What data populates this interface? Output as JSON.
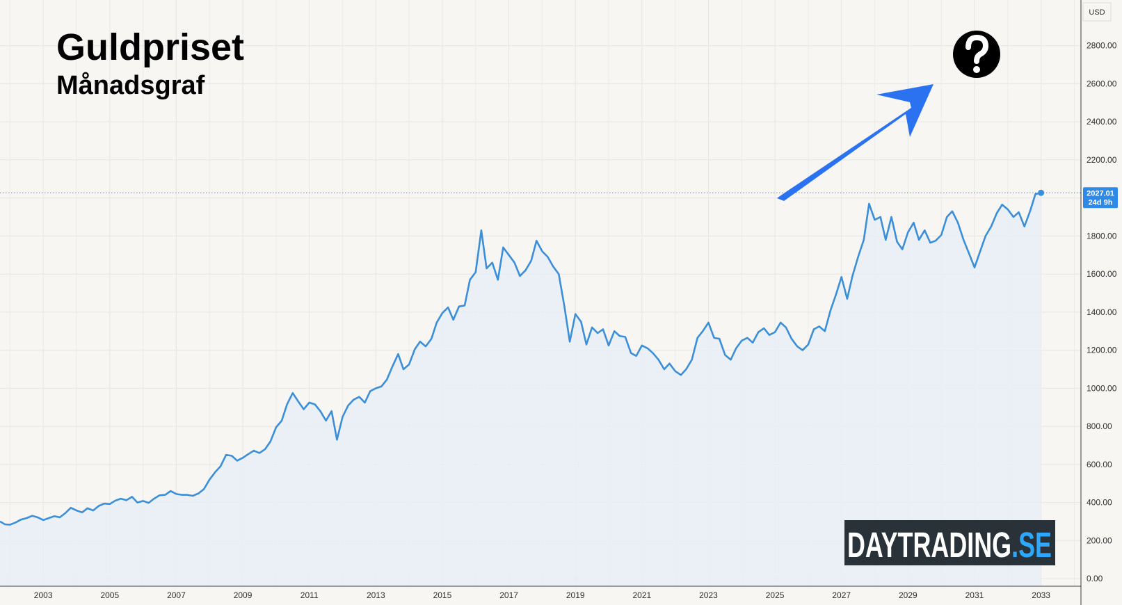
{
  "chart_data": {
    "type": "area",
    "title": "Guldpriset",
    "subtitle": "Månadsgraf",
    "currency": "USD",
    "x_range": [
      2001.7,
      2034.2
    ],
    "ylim": [
      -40,
      3040
    ],
    "x_ticks": [
      "2003",
      "2005",
      "2007",
      "2009",
      "2011",
      "2013",
      "2015",
      "2017",
      "2019",
      "2021",
      "2023",
      "2025",
      "2027",
      "2029",
      "2031",
      "2033"
    ],
    "y_ticks": [
      "0.00",
      "200.00",
      "400.00",
      "600.00",
      "800.00",
      "1000.00",
      "1200.00",
      "1400.00",
      "1600.00",
      "1800.00",
      "2200.00",
      "2400.00",
      "2600.00",
      "2800.00"
    ],
    "grid": true,
    "last_price": {
      "value": 2027.01,
      "label": "2027.01",
      "countdown": "24d 9h"
    },
    "series": [
      {
        "name": "",
        "color": "#3b8fd8",
        "points": [
          [
            2001.7,
            300
          ],
          [
            2001.85,
            285
          ],
          [
            2002.0,
            283
          ],
          [
            2002.17,
            295
          ],
          [
            2002.33,
            310
          ],
          [
            2002.5,
            318
          ],
          [
            2002.67,
            330
          ],
          [
            2002.83,
            322
          ],
          [
            2003.0,
            308
          ],
          [
            2003.17,
            318
          ],
          [
            2003.33,
            328
          ],
          [
            2003.5,
            322
          ],
          [
            2003.67,
            345
          ],
          [
            2003.83,
            372
          ],
          [
            2004.0,
            358
          ],
          [
            2004.17,
            348
          ],
          [
            2004.33,
            370
          ],
          [
            2004.5,
            358
          ],
          [
            2004.67,
            382
          ],
          [
            2004.83,
            394
          ],
          [
            2005.0,
            392
          ],
          [
            2005.17,
            410
          ],
          [
            2005.33,
            420
          ],
          [
            2005.5,
            412
          ],
          [
            2005.67,
            430
          ],
          [
            2005.83,
            400
          ],
          [
            2006.0,
            408
          ],
          [
            2006.17,
            398
          ],
          [
            2006.33,
            420
          ],
          [
            2006.5,
            438
          ],
          [
            2006.67,
            440
          ],
          [
            2006.83,
            460
          ],
          [
            2007.0,
            445
          ],
          [
            2007.17,
            440
          ],
          [
            2007.33,
            440
          ],
          [
            2007.5,
            435
          ],
          [
            2007.67,
            448
          ],
          [
            2007.83,
            470
          ],
          [
            2008.0,
            520
          ],
          [
            2008.17,
            560
          ],
          [
            2008.33,
            590
          ],
          [
            2008.5,
            650
          ],
          [
            2008.67,
            645
          ],
          [
            2008.83,
            620
          ],
          [
            2009.0,
            635
          ],
          [
            2009.17,
            655
          ],
          [
            2009.33,
            672
          ],
          [
            2009.5,
            660
          ],
          [
            2009.67,
            680
          ],
          [
            2009.83,
            720
          ],
          [
            2010.0,
            795
          ],
          [
            2010.17,
            830
          ],
          [
            2010.33,
            915
          ],
          [
            2010.5,
            975
          ],
          [
            2010.67,
            930
          ],
          [
            2010.83,
            890
          ],
          [
            2011.0,
            925
          ],
          [
            2011.17,
            915
          ],
          [
            2011.33,
            880
          ],
          [
            2011.5,
            830
          ],
          [
            2011.67,
            880
          ],
          [
            2011.83,
            730
          ],
          [
            2012.0,
            850
          ],
          [
            2012.17,
            910
          ],
          [
            2012.33,
            940
          ],
          [
            2012.5,
            955
          ],
          [
            2012.67,
            925
          ],
          [
            2012.83,
            985
          ],
          [
            2013.0,
            1000
          ],
          [
            2013.17,
            1010
          ],
          [
            2013.33,
            1045
          ],
          [
            2013.5,
            1115
          ],
          [
            2013.67,
            1180
          ],
          [
            2013.83,
            1100
          ],
          [
            2014.0,
            1125
          ],
          [
            2014.17,
            1205
          ],
          [
            2014.33,
            1245
          ],
          [
            2014.5,
            1220
          ],
          [
            2014.67,
            1260
          ],
          [
            2014.83,
            1345
          ],
          [
            2015.0,
            1395
          ],
          [
            2015.17,
            1425
          ],
          [
            2015.33,
            1360
          ],
          [
            2015.5,
            1430
          ],
          [
            2015.67,
            1435
          ],
          [
            2015.83,
            1570
          ],
          [
            2016.0,
            1610
          ],
          [
            2016.17,
            1830
          ],
          [
            2016.33,
            1630
          ],
          [
            2016.5,
            1660
          ],
          [
            2016.67,
            1570
          ],
          [
            2016.83,
            1740
          ],
          [
            2017.0,
            1700
          ],
          [
            2017.17,
            1660
          ],
          [
            2017.33,
            1590
          ],
          [
            2017.5,
            1620
          ],
          [
            2017.67,
            1670
          ],
          [
            2017.83,
            1775
          ],
          [
            2018.0,
            1720
          ],
          [
            2018.17,
            1690
          ],
          [
            2018.33,
            1640
          ],
          [
            2018.5,
            1600
          ],
          [
            2018.67,
            1430
          ],
          [
            2018.83,
            1245
          ],
          [
            2019.0,
            1390
          ],
          [
            2019.17,
            1350
          ],
          [
            2019.33,
            1230
          ],
          [
            2019.5,
            1320
          ],
          [
            2019.67,
            1290
          ],
          [
            2019.83,
            1310
          ],
          [
            2020.0,
            1225
          ],
          [
            2020.17,
            1300
          ],
          [
            2020.33,
            1275
          ],
          [
            2020.5,
            1270
          ],
          [
            2020.67,
            1185
          ],
          [
            2020.83,
            1170
          ],
          [
            2021.0,
            1225
          ],
          [
            2021.17,
            1210
          ],
          [
            2021.33,
            1185
          ],
          [
            2021.5,
            1150
          ],
          [
            2021.67,
            1100
          ],
          [
            2021.83,
            1130
          ],
          [
            2022.0,
            1090
          ],
          [
            2022.17,
            1070
          ],
          [
            2022.33,
            1100
          ],
          [
            2022.5,
            1150
          ],
          [
            2022.67,
            1265
          ],
          [
            2022.83,
            1300
          ],
          [
            2023.0,
            1345
          ],
          [
            2023.17,
            1265
          ],
          [
            2023.33,
            1260
          ],
          [
            2023.5,
            1175
          ],
          [
            2023.67,
            1150
          ],
          [
            2023.83,
            1210
          ],
          [
            2024.0,
            1250
          ],
          [
            2024.17,
            1265
          ],
          [
            2024.33,
            1240
          ],
          [
            2024.5,
            1295
          ],
          [
            2024.67,
            1315
          ],
          [
            2024.83,
            1280
          ],
          [
            2025.0,
            1295
          ],
          [
            2025.17,
            1345
          ],
          [
            2025.33,
            1320
          ],
          [
            2025.5,
            1260
          ],
          [
            2025.67,
            1220
          ],
          [
            2025.83,
            1200
          ],
          [
            2026.0,
            1230
          ],
          [
            2026.17,
            1310
          ],
          [
            2026.33,
            1325
          ],
          [
            2026.5,
            1300
          ],
          [
            2026.67,
            1410
          ],
          [
            2026.83,
            1490
          ],
          [
            2027.0,
            1585
          ],
          [
            2027.17,
            1470
          ],
          [
            2027.33,
            1590
          ],
          [
            2027.5,
            1690
          ],
          [
            2027.67,
            1780
          ],
          [
            2027.83,
            1970
          ],
          [
            2028.0,
            1885
          ],
          [
            2028.17,
            1900
          ],
          [
            2028.33,
            1780
          ],
          [
            2028.5,
            1900
          ],
          [
            2028.67,
            1770
          ],
          [
            2028.83,
            1730
          ],
          [
            2029.0,
            1820
          ],
          [
            2029.17,
            1870
          ],
          [
            2029.33,
            1780
          ],
          [
            2029.5,
            1830
          ],
          [
            2029.67,
            1765
          ],
          [
            2029.83,
            1775
          ],
          [
            2030.0,
            1805
          ],
          [
            2030.17,
            1900
          ],
          [
            2030.33,
            1930
          ],
          [
            2030.5,
            1870
          ],
          [
            2030.67,
            1780
          ],
          [
            2030.83,
            1710
          ],
          [
            2031.0,
            1635
          ],
          [
            2031.17,
            1720
          ],
          [
            2031.33,
            1800
          ],
          [
            2031.5,
            1850
          ],
          [
            2031.67,
            1920
          ],
          [
            2031.83,
            1965
          ],
          [
            2032.0,
            1940
          ],
          [
            2032.17,
            1900
          ],
          [
            2032.33,
            1925
          ],
          [
            2032.5,
            1850
          ],
          [
            2032.67,
            1930
          ],
          [
            2032.83,
            2020
          ],
          [
            2033.0,
            2027
          ]
        ]
      }
    ]
  },
  "logo": {
    "brand": "DAYTRADING",
    "suffix": ".SE"
  },
  "colors": {
    "line": "#3b8fd8",
    "area_fill": "#e7eef5",
    "arrow": "#2a72f0",
    "badge": "#2e8ae6",
    "logo_bg": "#283238",
    "logo_accent": "#2ea8ff"
  },
  "icons": {
    "question": "question-mark-circle-icon",
    "arrow": "up-right-arrow-icon"
  }
}
